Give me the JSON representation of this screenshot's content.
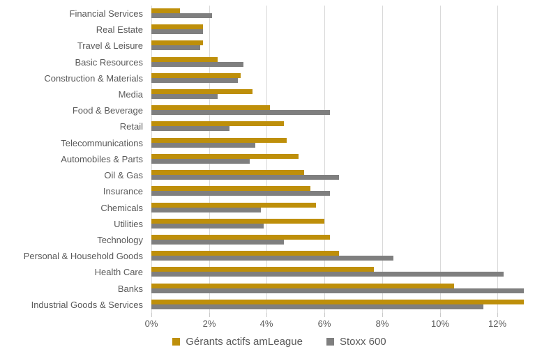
{
  "chart_data": {
    "type": "bar",
    "orientation": "horizontal",
    "title": "",
    "xlabel": "",
    "ylabel": "",
    "categories": [
      "Financial Services",
      "Real Estate",
      "Travel & Leisure",
      "Basic Resources",
      "Construction & Materials",
      "Media",
      "Food & Beverage",
      "Retail",
      "Telecommunications",
      "Automobiles & Parts",
      "Oil & Gas",
      "Insurance",
      "Chemicals",
      "Utilities",
      "Technology",
      "Personal & Household Goods",
      "Health Care",
      "Banks",
      "Industrial Goods & Services"
    ],
    "series": [
      {
        "name": "Gérants actifs amLeague",
        "color": "#BE8F0A",
        "values": [
          1.0,
          1.8,
          1.8,
          2.3,
          3.1,
          3.5,
          4.1,
          4.6,
          4.7,
          5.1,
          5.3,
          5.5,
          5.7,
          6.0,
          6.2,
          6.5,
          7.7,
          10.5,
          12.9
        ]
      },
      {
        "name": "Stoxx 600",
        "color": "#7F7F7F",
        "values": [
          2.1,
          1.8,
          1.7,
          3.2,
          3.0,
          2.3,
          6.2,
          2.7,
          3.6,
          3.4,
          6.5,
          6.2,
          3.8,
          3.9,
          4.6,
          8.4,
          12.2,
          12.9,
          11.5
        ]
      }
    ],
    "x_ticks": [
      "0%",
      "2%",
      "4%",
      "6%",
      "8%",
      "10%",
      "12%"
    ],
    "x_tick_values": [
      0,
      2,
      4,
      6,
      8,
      10,
      12
    ],
    "xlim": [
      0,
      13
    ],
    "grid": true,
    "legend_position": "bottom"
  },
  "colors": {
    "background": "#FFFFFF",
    "gridline": "#D9D9D9",
    "tick": "#C9C9C9",
    "text": "#595959",
    "series_gold": "#BE8F0A",
    "series_gray": "#7F7F7F"
  }
}
